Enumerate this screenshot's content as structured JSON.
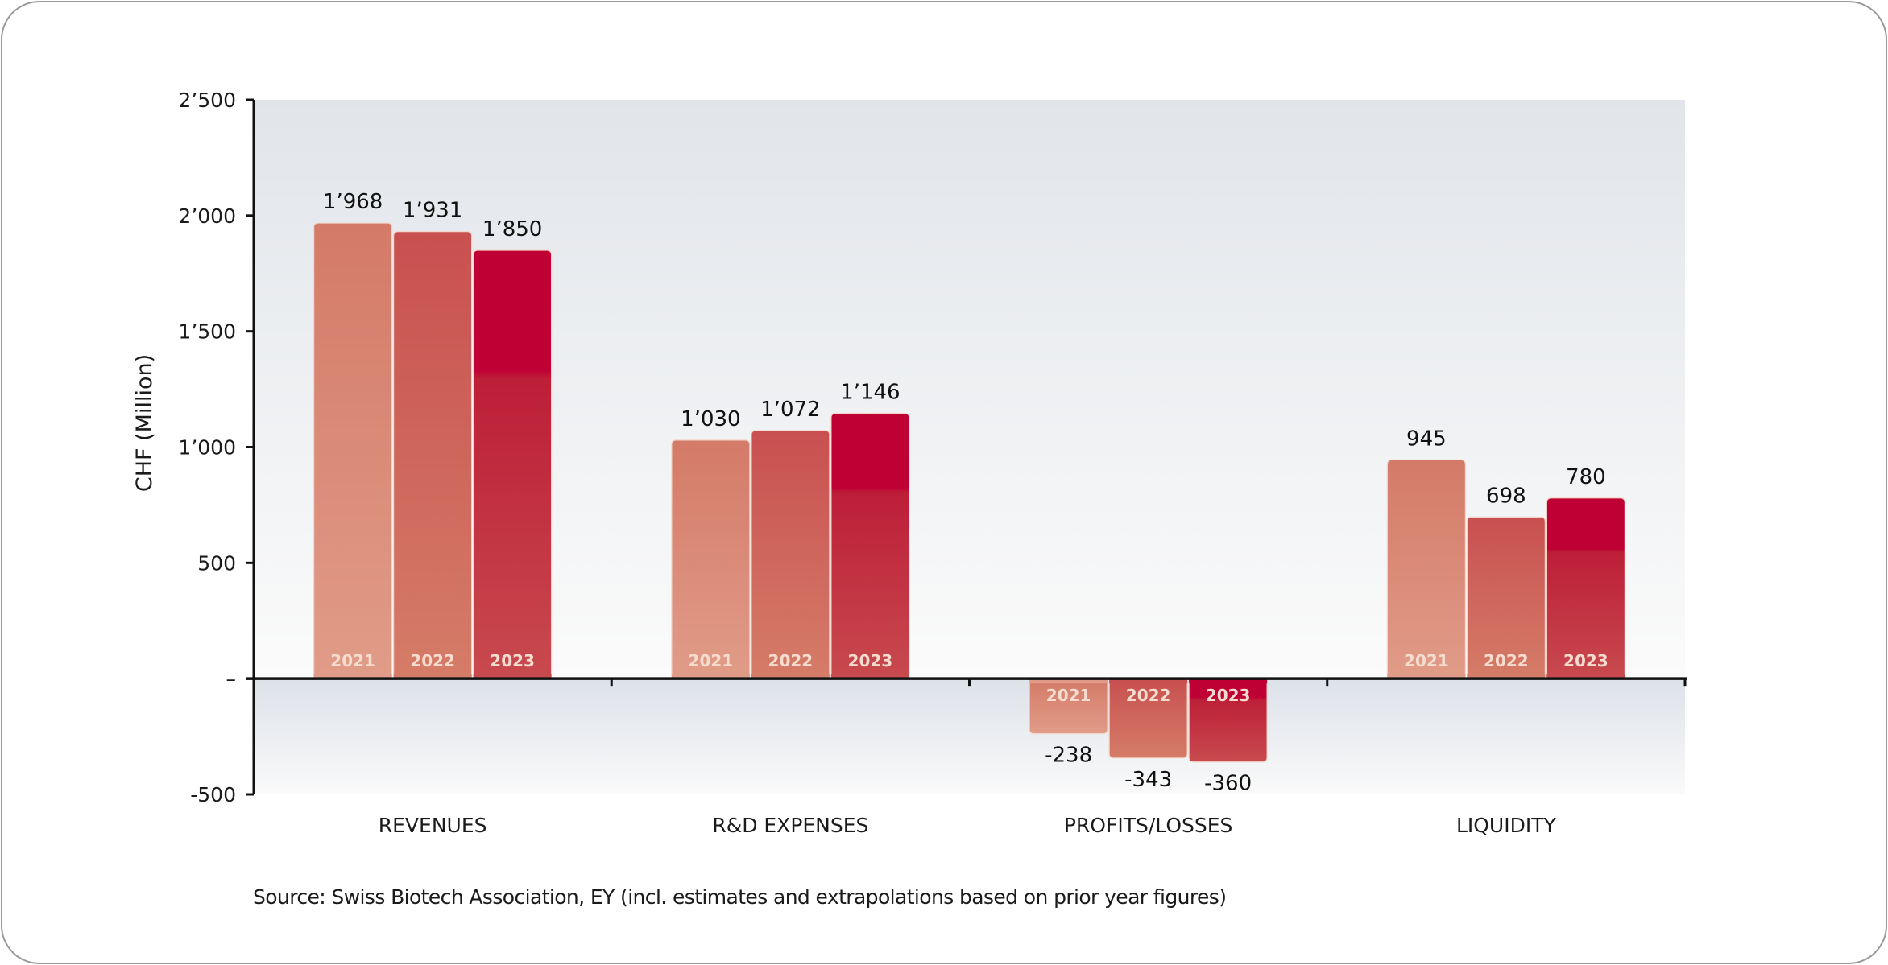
{
  "chart_data": {
    "type": "bar",
    "title": "",
    "xlabel": "",
    "ylabel": "CHF (Million)",
    "ylim": [
      -500,
      2500
    ],
    "yticks": [
      {
        "value": 2500,
        "label": "2’500"
      },
      {
        "value": 2000,
        "label": "2’000"
      },
      {
        "value": 1500,
        "label": "1’500"
      },
      {
        "value": 1000,
        "label": "1’000"
      },
      {
        "value": 500,
        "label": "500"
      },
      {
        "value": 0,
        "label": "–"
      },
      {
        "value": -500,
        "label": "-500"
      }
    ],
    "categories": [
      "REVENUES",
      "R&D EXPENSES",
      "PROFITS/LOSSES",
      "LIQUIDITY"
    ],
    "series": [
      {
        "name": "2021",
        "values": [
          1968,
          1030,
          -238,
          945
        ],
        "labels": [
          "1’968",
          "1’030",
          "-238",
          "945"
        ],
        "color": "#d47a68"
      },
      {
        "name": "2022",
        "values": [
          1931,
          1072,
          -343,
          698
        ],
        "labels": [
          "1’931",
          "1’072",
          "-343",
          "698"
        ],
        "color": "#c85050"
      },
      {
        "name": "2023",
        "values": [
          1850,
          1146,
          -360,
          780
        ],
        "labels": [
          "1’850",
          "1’146",
          "-360",
          "780"
        ],
        "color": "#bf0034"
      }
    ],
    "legend": "none (year labels inside bars)",
    "grid": false
  },
  "source": "Source: Swiss Biotech Association, EY (incl. estimates and extrapolations based on prior year figures)"
}
